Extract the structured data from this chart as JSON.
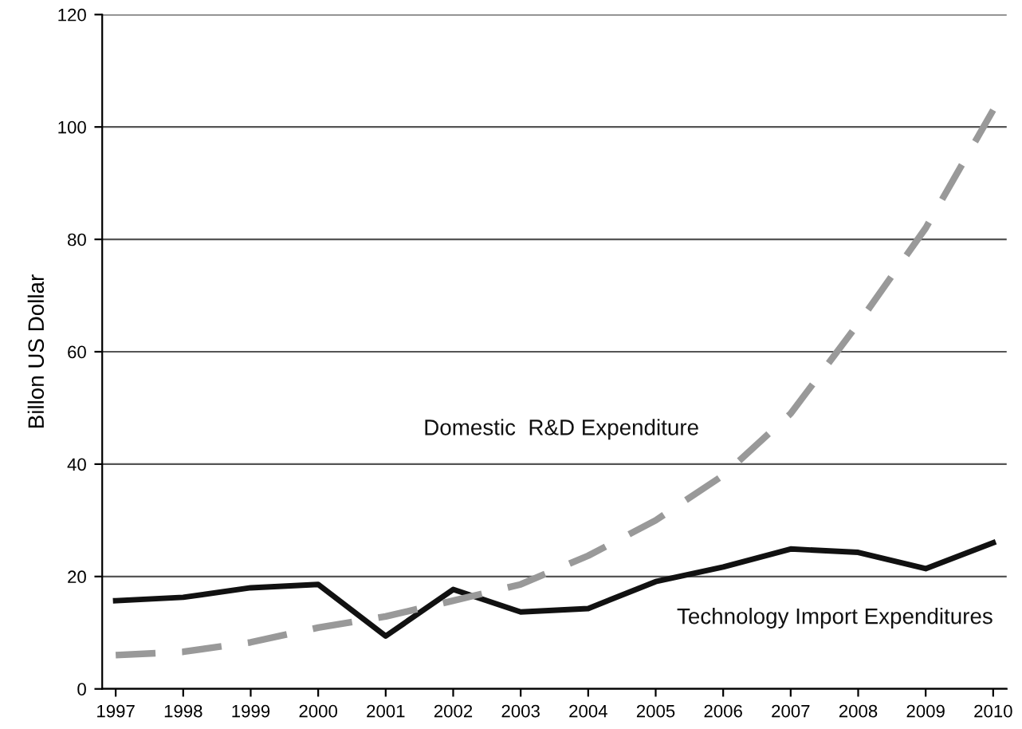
{
  "chart_data": {
    "type": "line",
    "ylabel": "Billon US Dollar",
    "categories": [
      "1997",
      "1998",
      "1999",
      "2000",
      "2001",
      "2002",
      "2003",
      "2004",
      "2005",
      "2006",
      "2007",
      "2008",
      "2009",
      "2010"
    ],
    "series": [
      {
        "name": "Technology Import Expenditures",
        "color": "#111111",
        "line_style": "solid",
        "values": [
          15.7,
          16.3,
          18,
          18.6,
          9.4,
          17.7,
          13.7,
          14.3,
          19.1,
          21.7,
          24.9,
          24.3,
          21.4,
          26
        ]
      },
      {
        "name": "Domestic  R&D Expenditure",
        "color": "#999999",
        "line_style": "dashed",
        "values": [
          6,
          6.6,
          8.3,
          10.9,
          12.9,
          15.7,
          18.6,
          23.7,
          30,
          38,
          49,
          65,
          82,
          103
        ]
      }
    ],
    "ylim": [
      0,
      120
    ],
    "yticks": [
      0,
      20,
      40,
      60,
      80,
      100,
      120
    ],
    "grid": "y",
    "legend": false,
    "marker": "none"
  }
}
